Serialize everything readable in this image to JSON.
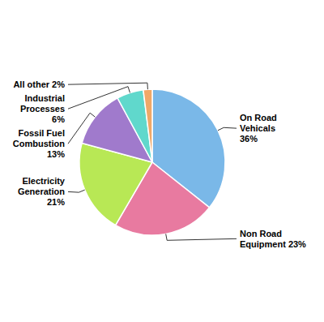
{
  "chart_data": {
    "type": "pie",
    "categories": [
      "On Road\nVehicals\n36%",
      "Non Road\nEquipment 23%",
      "Electricity\nGeneration\n21%",
      "Fossil Fuel\nCombustion\n13%",
      "Industrial\nProcesses\n6%",
      "All other 2%"
    ],
    "values": [
      36,
      23,
      21,
      13,
      6,
      2
    ],
    "colors": [
      "#7ab8e8",
      "#e87aa0",
      "#b8e855",
      "#a07acc",
      "#60d8cc",
      "#f0a868"
    ]
  }
}
